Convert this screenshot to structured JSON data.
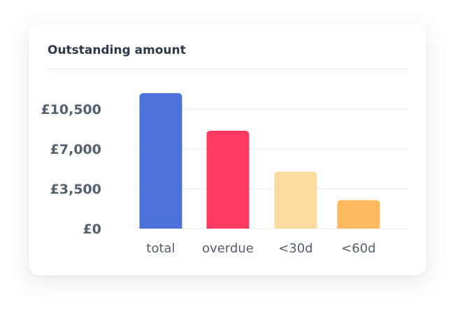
{
  "card": {
    "title": "Outstanding amount"
  },
  "chart_data": {
    "type": "bar",
    "title": "Outstanding amount",
    "xlabel": "",
    "ylabel": "",
    "categories": [
      "total",
      "overdue",
      "<30d",
      "<60d"
    ],
    "values": [
      11900,
      8600,
      5000,
      2500
    ],
    "colors": [
      "#4d72db",
      "#fd3b60",
      "#fedba0",
      "#feb95c"
    ],
    "ylim": [
      0,
      10500
    ],
    "yticks": [
      0,
      3500,
      7000,
      10500
    ],
    "ytick_labels": [
      "£0",
      "£3,500",
      "£7,000",
      "£10,500"
    ],
    "grid": true,
    "legend": "none"
  }
}
